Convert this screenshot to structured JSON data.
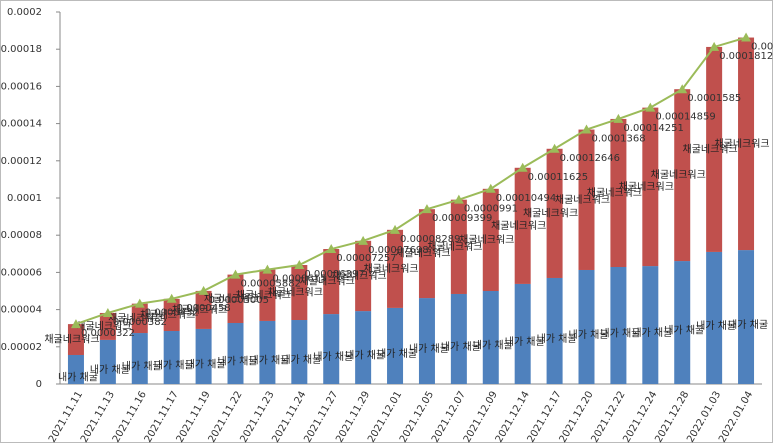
{
  "chart_data": {
    "type": "stacked-bar-line",
    "categories": [
      "2021.11.11",
      "2021.11.13",
      "2021.11.16",
      "2021.11.17",
      "2021.11.19",
      "2021.11.22",
      "2021.11.23",
      "2021.11.24",
      "2021.11.27",
      "2021.11.29",
      "2021.12.01",
      "2021.12.05",
      "2021.12.07",
      "2021.12.09",
      "2021.12.14",
      "2021.12.17",
      "2021.12.20",
      "2021.12.22",
      "2021.12.24",
      "2021.12.28",
      "2022.01.03",
      "2022.01.04"
    ],
    "series": [
      {
        "name": "내가 채굴",
        "type": "bar",
        "color": "#4f81bd",
        "values": [
          1.56e-05,
          2.37e-05,
          2.74e-05,
          2.85e-05,
          2.96e-05,
          3.28e-05,
          3.39e-05,
          3.44e-05,
          3.76e-05,
          3.92e-05,
          4.09e-05,
          4.62e-05,
          4.84e-05,
          5e-05,
          5.38e-05,
          5.7e-05,
          6.13e-05,
          6.29e-05,
          6.34e-05,
          6.61e-05,
          7.1e-05,
          7.2e-05
        ]
      },
      {
        "name": "채굴네크워크",
        "type": "bar",
        "color": "#c0504d",
        "values": [
          1.66e-05,
          1.45e-05,
          1.58e-05,
          1.73e-05,
          2.045e-05,
          2.602e-05,
          2.76e-05,
          2.957e-05,
          3.497e-05,
          3.778e-05,
          4.199e-05,
          4.779e-05,
          5.07e-05,
          5.494e-05,
          6.245e-05,
          6.946e-05,
          7.55e-05,
          7.961e-05,
          8.519e-05,
          9.24e-05,
          0.00011022,
          0.00011427
        ]
      },
      {
        "type": "line",
        "color": "#9bbb59",
        "values": [
          3.22e-05,
          3.82e-05,
          4.32e-05,
          4.58e-05,
          5.005e-05,
          5.882e-05,
          6.15e-05,
          6.397e-05,
          7.257e-05,
          7.698e-05,
          8.289e-05,
          9.399e-05,
          9.91e-05,
          0.00010494,
          0.00011625,
          0.00012646,
          0.0001368,
          0.00014251,
          0.00014859,
          0.0001585,
          0.00018122,
          0.00018627
        ]
      }
    ],
    "ylim": [
      0,
      0.0002
    ],
    "yticks": [
      0,
      2e-05,
      4e-05,
      6e-05,
      8e-05,
      0.0001,
      0.00012,
      0.00014,
      0.00016,
      0.00018,
      0.0002
    ]
  }
}
